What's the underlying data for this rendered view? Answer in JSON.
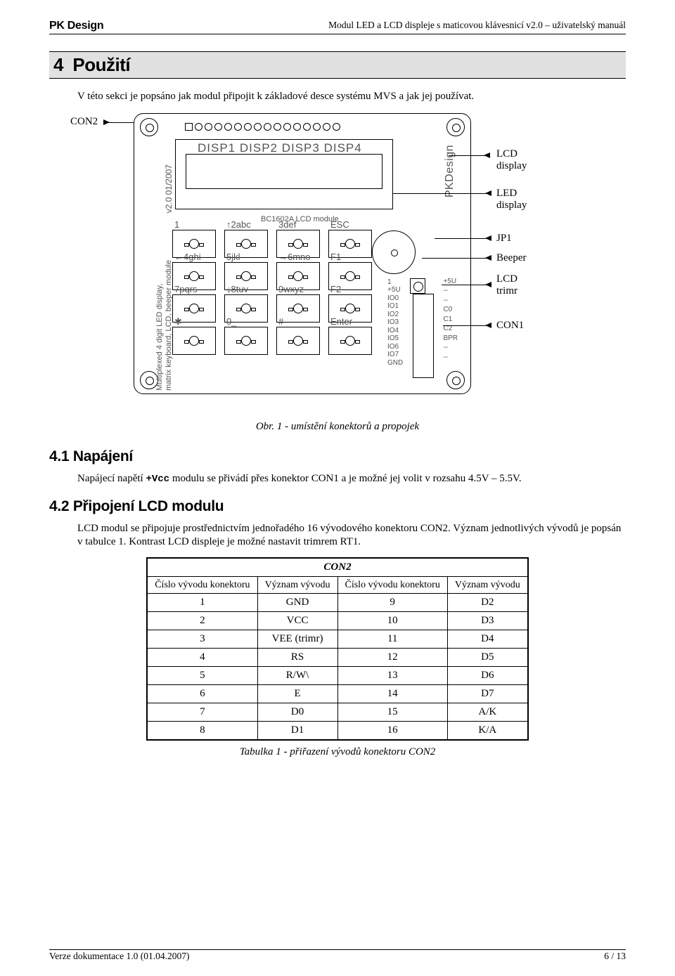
{
  "header": {
    "brand": "PK Design",
    "doc_title": "Modul LED a LCD displeje s maticovou klávesnicí v2.0 – uživatelský manuál"
  },
  "section": {
    "num": "4",
    "title": "Použití",
    "intro": "V této sekci je popsáno jak modul připojit k základové desce systému MVS a jak jej používat."
  },
  "diagram": {
    "con2": "CON2",
    "lcd_display": "LCD\ndisplay",
    "led_display": "LED\ndisplay",
    "jp1": "JP1",
    "beeper": "Beeper",
    "lcd_trimr": "LCD\ntrimr",
    "con1": "CON1",
    "disp_labels": "DISP1 DISP2 DISP3 DISP4",
    "ver_label": "v2.0 01/2007",
    "pkd": "PKDesign",
    "midtext": "BC1602A LCD module",
    "leftlbl": "Multiplexed 4 digit LED display,\nmatrix keyboard, LCD, beeper module",
    "keypad": [
      [
        "1",
        "↑2abc",
        "3def",
        "ESC"
      ],
      [
        "←4ghi",
        "5jkl",
        "→6mno",
        "F1"
      ],
      [
        "7pqrs",
        "↓8tuv",
        "9wxyz",
        "F2"
      ],
      [
        "✱",
        "0_",
        "#",
        "Enter"
      ]
    ],
    "ioblock": "1\n+5U\nIO0\nIO1\nIO2\nIO3\nIO4\nIO5\nIO6\nIO7\nGND",
    "ioblock2": "+5U\n--\n--\nC0\nC1\nC2\nBPR\n--\n--",
    "caption": "Obr. 1 - umístění konektorů a propojek"
  },
  "s41": {
    "heading": "4.1   Napájení",
    "text_a": "Napájecí napětí ",
    "text_vcc": "+Vcc",
    "text_b": " modulu se přivádí přes konektor CON1 a je možné jej volit v rozsahu 4.5V – 5.5V."
  },
  "s42": {
    "heading": "4.2   Připojení LCD modulu",
    "text": "LCD modul se připojuje prostřednictvím jednořadého 16 vývodového konektoru CON2. Význam jednotlivých vývodů je popsán v tabulce 1. Kontrast LCD displeje je možné nastavit trimrem RT1."
  },
  "table": {
    "title": "CON2",
    "headers": [
      "Číslo vývodu konektoru",
      "Význam vývodu",
      "Číslo vývodu konektoru",
      "Význam vývodu"
    ],
    "rows": [
      [
        "1",
        "GND",
        "9",
        "D2"
      ],
      [
        "2",
        "VCC",
        "10",
        "D3"
      ],
      [
        "3",
        "VEE (trimr)",
        "11",
        "D4"
      ],
      [
        "4",
        "RS",
        "12",
        "D5"
      ],
      [
        "5",
        "R/W\\",
        "13",
        "D6"
      ],
      [
        "6",
        "E",
        "14",
        "D7"
      ],
      [
        "7",
        "D0",
        "15",
        "A/K"
      ],
      [
        "8",
        "D1",
        "16",
        "K/A"
      ]
    ],
    "caption": "Tabulka 1  - přiřazení vývodů konektoru CON2"
  },
  "footer": {
    "left": "Verze dokumentace 1.0 (01.04.2007)",
    "right": "6 / 13"
  }
}
